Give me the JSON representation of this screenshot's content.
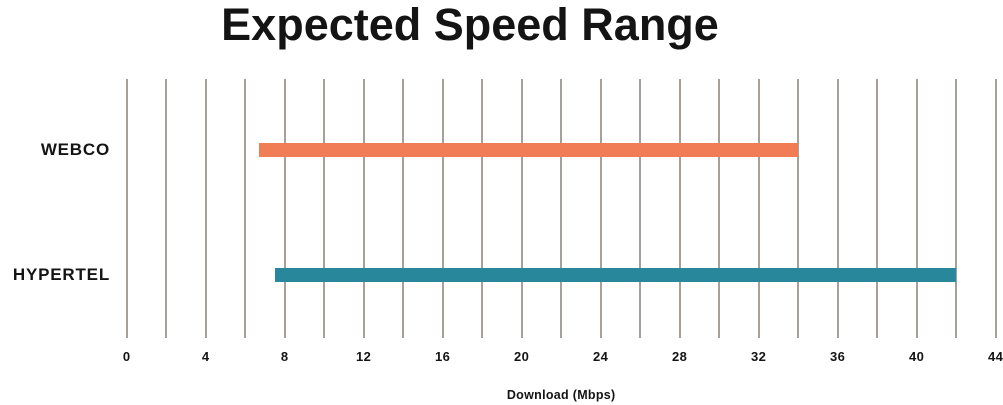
{
  "page": {
    "background": "#ffffff"
  },
  "chart_data": {
    "type": "bar",
    "variant": "horizontal-range",
    "title": "Expected Speed Range",
    "xlabel": "Download (Mbps)",
    "categories": [
      "WEBCO",
      "HYPERTEL"
    ],
    "series": [
      {
        "name": "WEBCO",
        "min": 6.7,
        "max": 34,
        "color": "#F07D55"
      },
      {
        "name": "HYPERTEL",
        "min": 7.5,
        "max": 42,
        "color": "#28879B"
      }
    ],
    "xlim": [
      0,
      44
    ],
    "x_major_step": 4,
    "x_minor_step": 2,
    "x_tick_labels": [
      "0",
      "4",
      "8",
      "12",
      "16",
      "20",
      "24",
      "28",
      "32",
      "36",
      "40",
      "44"
    ],
    "grid": true,
    "legend": false,
    "colors": {
      "gridline": "#A5A099",
      "text": "#141414"
    }
  }
}
